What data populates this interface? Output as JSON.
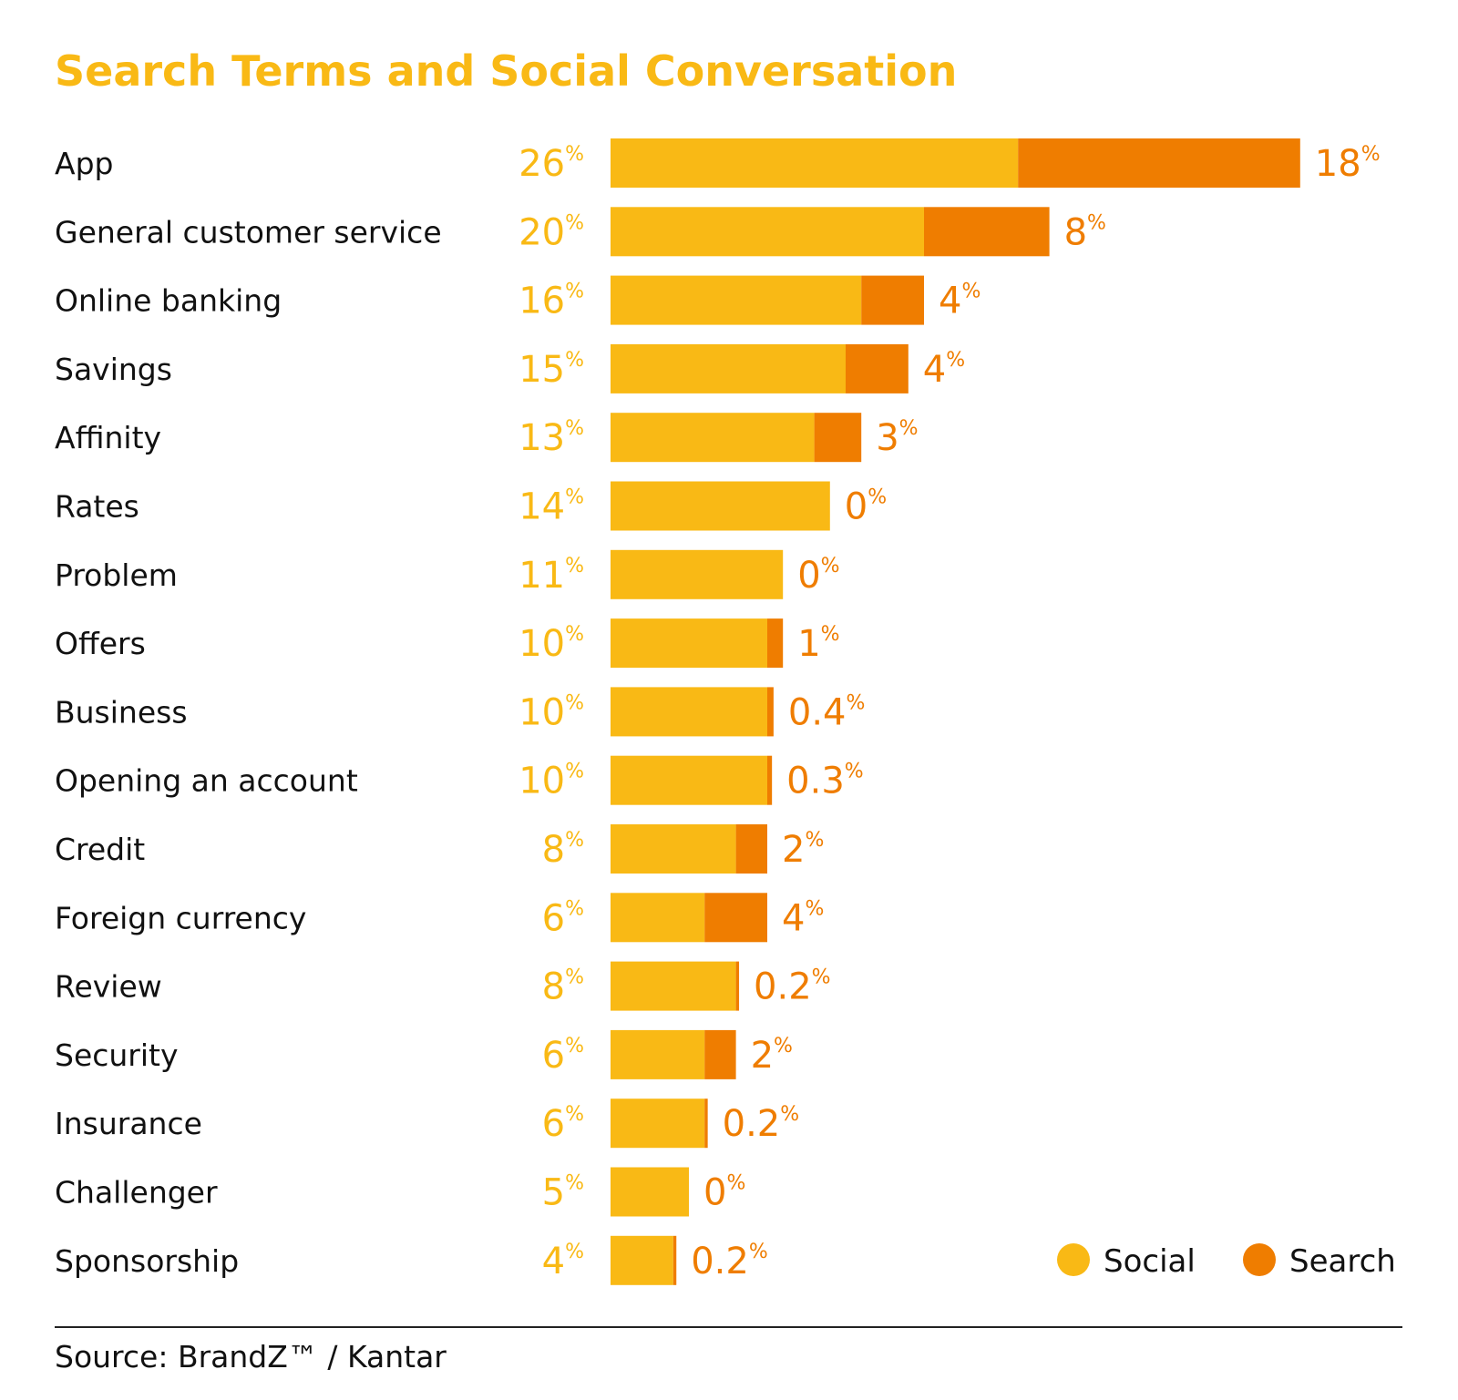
{
  "chart_data": {
    "type": "bar",
    "orientation": "horizontal",
    "stacked": true,
    "title": "Search Terms and Social Conversation",
    "categories": [
      "App",
      "General customer service",
      "Online banking",
      "Savings",
      "Affinity",
      "Rates",
      "Problem",
      "Offers",
      "Business",
      "Opening an account",
      "Credit",
      "Foreign currency",
      "Review",
      "Security",
      "Insurance",
      "Challenger",
      "Sponsorship"
    ],
    "series": [
      {
        "name": "Social",
        "color": "#F9B915",
        "values": [
          26,
          20,
          16,
          15,
          13,
          14,
          11,
          10,
          10,
          10,
          8,
          6,
          8,
          6,
          6,
          5,
          4
        ],
        "labels": [
          "26",
          "20",
          "16",
          "15",
          "13",
          "14",
          "11",
          "10",
          "10",
          "10",
          "8",
          "6",
          "8",
          "6",
          "6",
          "5",
          "4"
        ]
      },
      {
        "name": "Search",
        "color": "#EF7D00",
        "values": [
          18,
          8,
          4,
          4,
          3,
          0,
          0,
          1,
          0.4,
          0.3,
          2,
          4,
          0.2,
          2,
          0.2,
          0,
          0.2
        ],
        "labels": [
          "18",
          "8",
          "4",
          "4",
          "3",
          "0",
          "0",
          "1",
          "0.4",
          "0.3",
          "2",
          "4",
          "0.2",
          "2",
          "0.2",
          "0",
          "0.2"
        ]
      }
    ],
    "unit": "%",
    "legend": "bottom-right",
    "grid": false,
    "source": "Source: BrandZ™ / Kantar"
  }
}
